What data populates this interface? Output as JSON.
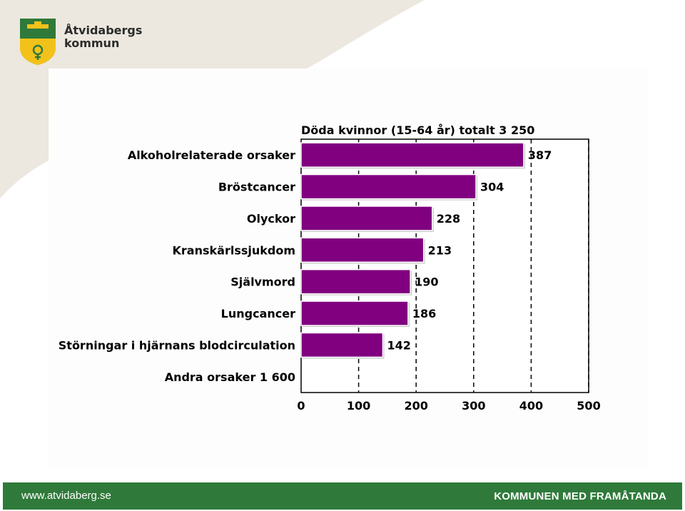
{
  "brand": {
    "name_line1": "Åtvidabergs",
    "name_line2": "kommun",
    "colors": {
      "green": "#2f7a3a",
      "yellow": "#f2c21b",
      "beige": "#ece8df"
    }
  },
  "footer": {
    "website": "www.atvidaberg.se",
    "slogan": "KOMMUNEN MED FRAMÅTANDA"
  },
  "chart_data": {
    "type": "bar",
    "orientation": "horizontal",
    "title": "Döda kvinnor (15-64 år) totalt  3 250",
    "categories": [
      "Alkoholrelaterade orsaker",
      "Bröstcancer",
      "Olyckor",
      "Kranskärlssjukdom",
      "Självmord",
      "Lungcancer",
      "Störningar i hjärnans blodcirculation",
      "Andra orsaker  1 600"
    ],
    "values": [
      387,
      304,
      228,
      213,
      190,
      186,
      142,
      null
    ],
    "data_labels": [
      "387",
      "304",
      "228",
      "213",
      "190",
      "186",
      "142",
      ""
    ],
    "xlim": [
      0,
      500
    ],
    "xticks": [
      0,
      100,
      200,
      300,
      400,
      500
    ],
    "grid": "vertical-dashed",
    "bar_color": "#800080"
  }
}
